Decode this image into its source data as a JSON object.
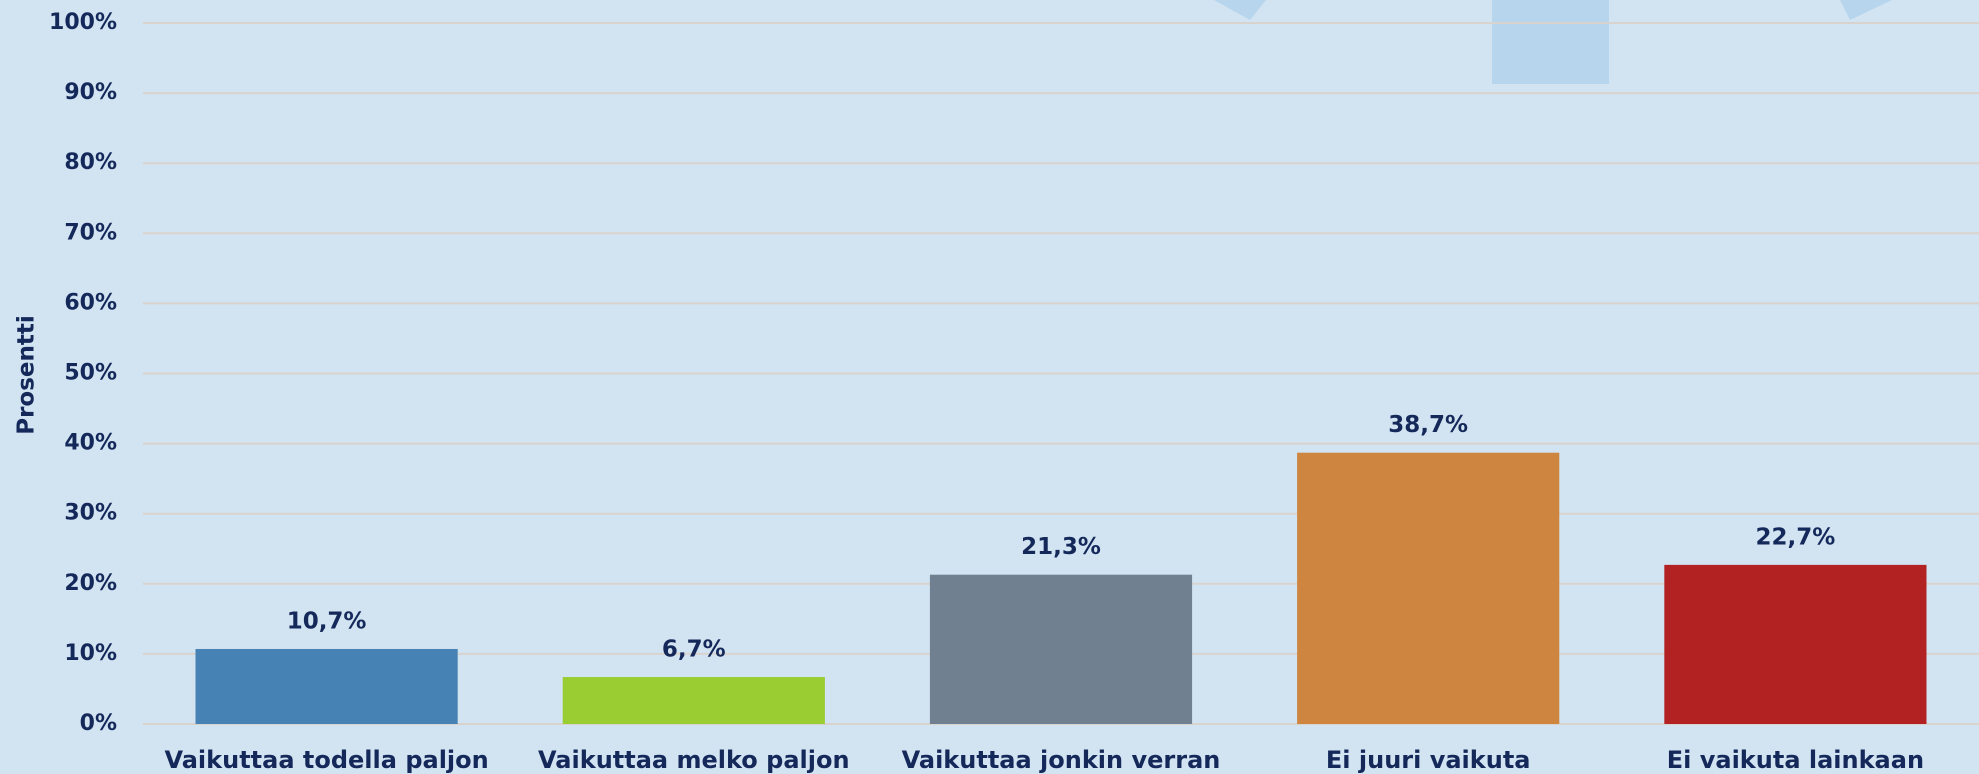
{
  "chart_data": {
    "type": "bar",
    "y_label": "Prosentti",
    "categories": [
      "Vaikuttaa todella paljon",
      "Vaikuttaa melko paljon",
      "Vaikuttaa jonkin verran",
      "Ei juuri vaikuta",
      "Ei vaikuta lainkaan"
    ],
    "values": [
      10.7,
      6.7,
      21.3,
      38.7,
      22.7
    ],
    "value_labels": [
      "10,7%",
      "6,7%",
      "21,3%",
      "38,7%",
      "22,7%"
    ],
    "colors": [
      "#4682b4",
      "#9acd32",
      "#708090",
      "#cd853f",
      "#b22222"
    ],
    "ylim": [
      0,
      100
    ],
    "yticks": [
      {
        "value": 0,
        "label": "0%"
      },
      {
        "value": 10,
        "label": "10%"
      },
      {
        "value": 20,
        "label": "20%"
      },
      {
        "value": 30,
        "label": "30%"
      },
      {
        "value": 40,
        "label": "40%"
      },
      {
        "value": 50,
        "label": "50%"
      },
      {
        "value": 60,
        "label": "60%"
      },
      {
        "value": 70,
        "label": "70%"
      },
      {
        "value": 80,
        "label": "80%"
      },
      {
        "value": 90,
        "label": "90%"
      },
      {
        "value": 100,
        "label": "100%"
      }
    ],
    "grid": true
  }
}
